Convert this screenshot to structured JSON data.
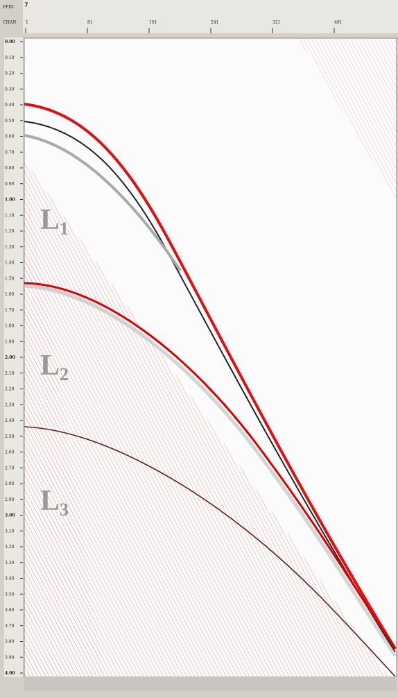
{
  "header": {
    "ffid_label": "FFID",
    "ffid_value": "7",
    "chan_label": "CHAN",
    "chan_ticks": [
      "1",
      "81",
      "161",
      "241",
      "321",
      "401"
    ]
  },
  "time_axis": {
    "ticks": [
      "0.00",
      "0.10",
      "0.20",
      "0.30",
      "0.40",
      "0.50",
      "0.60",
      "0.70",
      "0.80",
      "0.90",
      "1.00",
      "1.10",
      "1.20",
      "1.30",
      "1.40",
      "1.50",
      "1.60",
      "1.70",
      "1.80",
      "1.90",
      "2.00",
      "2.10",
      "2.20",
      "2.30",
      "2.40",
      "2.50",
      "2.60",
      "2.70",
      "2.80",
      "2.90",
      "3.00",
      "3.10",
      "3.20",
      "3.30",
      "3.40",
      "3.50",
      "3.60",
      "3.70",
      "3.80",
      "3.90",
      "4.00"
    ]
  },
  "annotations": [
    {
      "letter": "L",
      "subscript": "1"
    },
    {
      "letter": "L",
      "subscript": "2"
    },
    {
      "letter": "L",
      "subscript": "3"
    }
  ]
}
